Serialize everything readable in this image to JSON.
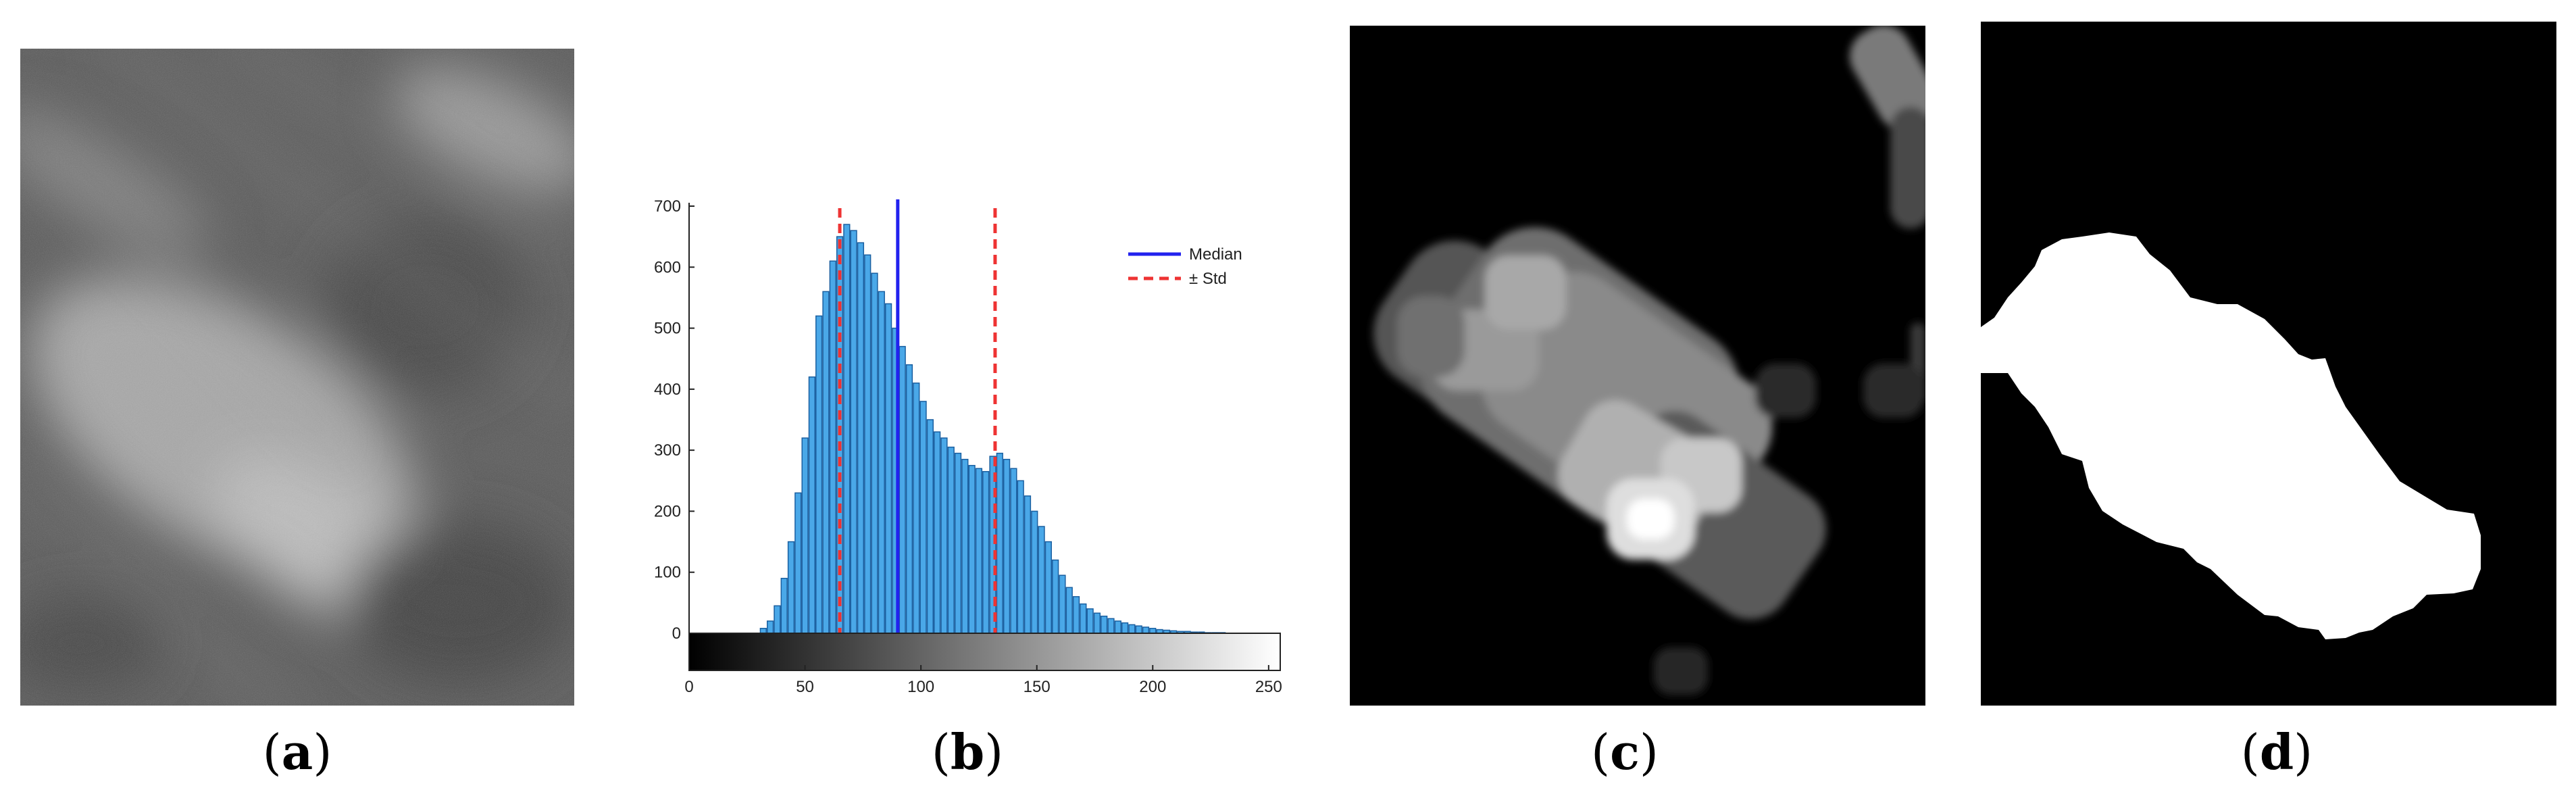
{
  "figure": {
    "captions": [
      {
        "open": "(",
        "letter": "a",
        "close": ")"
      },
      {
        "open": "(",
        "letter": "b",
        "close": ")"
      },
      {
        "open": "(",
        "letter": "c",
        "close": ")"
      },
      {
        "open": "(",
        "letter": "d",
        "close": ")"
      }
    ],
    "panel_a": {
      "kind": "grayscale mammogram texture"
    },
    "panel_c": {
      "kind": "grayscale blob map"
    },
    "panel_d": {
      "kind": "binary mask"
    }
  },
  "chart_data": {
    "type": "bar",
    "title": "",
    "xlabel": "",
    "ylabel": "",
    "xlim": [
      0,
      255
    ],
    "ylim": [
      0,
      700
    ],
    "x_ticks": [
      0,
      50,
      100,
      150,
      200,
      250
    ],
    "y_ticks": [
      0,
      100,
      200,
      300,
      400,
      500,
      600,
      700
    ],
    "bar_color": "#4aa8e8",
    "bar_edge_color": "#1a5fa0",
    "histogram_bins_x": [
      32,
      35,
      38,
      41,
      44,
      47,
      50,
      53,
      56,
      59,
      62,
      65,
      68,
      71,
      74,
      77,
      80,
      83,
      86,
      89,
      92,
      95,
      98,
      101,
      104,
      107,
      110,
      113,
      116,
      119,
      122,
      125,
      128,
      131,
      134,
      137,
      140,
      143,
      146,
      149,
      152,
      155,
      158,
      161,
      164,
      167,
      170,
      173,
      176,
      179,
      182,
      185,
      188,
      191,
      194,
      197,
      200,
      203,
      206,
      209,
      212,
      215,
      218,
      221,
      224,
      227,
      230
    ],
    "histogram_counts": [
      8,
      20,
      45,
      90,
      150,
      230,
      320,
      420,
      520,
      560,
      610,
      650,
      670,
      660,
      640,
      620,
      590,
      560,
      540,
      500,
      470,
      440,
      410,
      380,
      350,
      330,
      320,
      305,
      295,
      285,
      275,
      270,
      265,
      290,
      295,
      285,
      270,
      250,
      225,
      200,
      175,
      150,
      120,
      95,
      75,
      60,
      48,
      40,
      33,
      28,
      24,
      20,
      17,
      14,
      12,
      10,
      8,
      6,
      5,
      4,
      3,
      3,
      2,
      2,
      1,
      1,
      1
    ],
    "median": 90,
    "std_lines": [
      65,
      132
    ],
    "legend": {
      "position": "top-right",
      "entries": [
        {
          "label": "Median",
          "color": "#2222ee",
          "style": "solid"
        },
        {
          "label": "± Std",
          "color": "#ee3333",
          "style": "dashed"
        }
      ]
    },
    "colorbar": {
      "from": "#000000",
      "to": "#ffffff"
    }
  }
}
